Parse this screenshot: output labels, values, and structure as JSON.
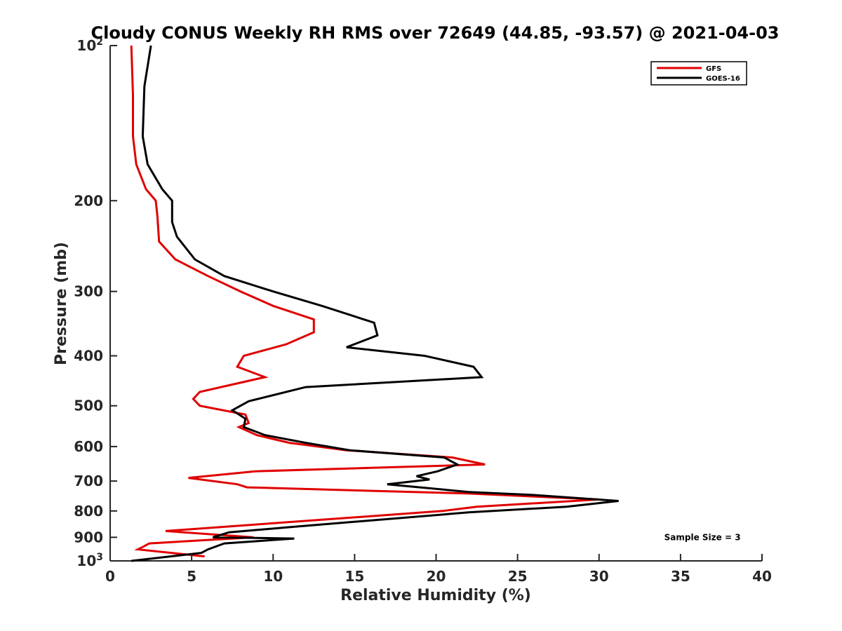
{
  "chart_data": {
    "type": "line",
    "title": "Cloudy CONUS Weekly RH RMS over 72649 (44.85, -93.57) @ 2021-04-03",
    "xlabel": "Relative Humidity (%)",
    "ylabel": "Pressure (mb)",
    "xlim": [
      0,
      40
    ],
    "ylim": [
      100,
      1000
    ],
    "y_scale": "log",
    "y_reversed": true,
    "grid": false,
    "legend_position": "top-right",
    "x_ticks": [
      "0",
      "5",
      "10",
      "15",
      "20",
      "25",
      "30",
      "35",
      "40"
    ],
    "y_ticks": [
      {
        "value": 100,
        "base": "10",
        "exp": "2"
      },
      {
        "value": 200,
        "label": "200"
      },
      {
        "value": 300,
        "label": "300"
      },
      {
        "value": 400,
        "label": "400"
      },
      {
        "value": 500,
        "label": "500"
      },
      {
        "value": 600,
        "label": "600"
      },
      {
        "value": 700,
        "label": "700"
      },
      {
        "value": 800,
        "label": "800"
      },
      {
        "value": 900,
        "label": "900"
      },
      {
        "value": 1000,
        "base": "10",
        "exp": "3"
      }
    ],
    "series": [
      {
        "name": "GFS",
        "color": "#e00000",
        "points": [
          [
            1.3,
            100
          ],
          [
            1.4,
            125
          ],
          [
            1.4,
            150
          ],
          [
            1.6,
            170
          ],
          [
            2.2,
            190
          ],
          [
            2.8,
            200
          ],
          [
            2.9,
            215
          ],
          [
            3.0,
            240
          ],
          [
            4.0,
            260
          ],
          [
            6.0,
            280
          ],
          [
            8.0,
            300
          ],
          [
            10.0,
            320
          ],
          [
            12.5,
            340
          ],
          [
            12.5,
            360
          ],
          [
            10.8,
            380
          ],
          [
            8.2,
            400
          ],
          [
            7.8,
            420
          ],
          [
            9.5,
            440
          ],
          [
            5.5,
            470
          ],
          [
            5.1,
            485
          ],
          [
            5.5,
            500
          ],
          [
            8.3,
            520
          ],
          [
            8.5,
            540
          ],
          [
            7.9,
            550
          ],
          [
            9.0,
            570
          ],
          [
            11.0,
            590
          ],
          [
            14.5,
            610
          ],
          [
            21.0,
            630
          ],
          [
            23.0,
            650
          ],
          [
            8.9,
            670
          ],
          [
            4.8,
            690
          ],
          [
            7.8,
            710
          ],
          [
            8.4,
            720
          ],
          [
            22.0,
            740
          ],
          [
            30.0,
            760
          ],
          [
            22.5,
            785
          ],
          [
            20.4,
            800
          ],
          [
            3.4,
            875
          ],
          [
            8.8,
            900
          ],
          [
            2.4,
            925
          ],
          [
            2.0,
            940
          ],
          [
            1.7,
            950
          ],
          [
            5.8,
            980
          ]
        ]
      },
      {
        "name": "GOES-16",
        "color": "#000000",
        "points": [
          [
            2.5,
            100
          ],
          [
            2.1,
            120
          ],
          [
            2.0,
            150
          ],
          [
            2.3,
            170
          ],
          [
            3.2,
            190
          ],
          [
            3.8,
            200
          ],
          [
            3.8,
            220
          ],
          [
            4.1,
            235
          ],
          [
            5.2,
            260
          ],
          [
            7.0,
            280
          ],
          [
            10.0,
            300
          ],
          [
            13.0,
            320
          ],
          [
            16.2,
            345
          ],
          [
            16.4,
            365
          ],
          [
            14.5,
            385
          ],
          [
            19.3,
            400
          ],
          [
            22.3,
            420
          ],
          [
            22.8,
            440
          ],
          [
            12.0,
            460
          ],
          [
            8.5,
            490
          ],
          [
            7.5,
            510
          ],
          [
            8.3,
            530
          ],
          [
            8.2,
            550
          ],
          [
            9.5,
            570
          ],
          [
            12.0,
            590
          ],
          [
            14.7,
            610
          ],
          [
            20.5,
            630
          ],
          [
            21.3,
            650
          ],
          [
            20.1,
            670
          ],
          [
            18.8,
            685
          ],
          [
            19.6,
            695
          ],
          [
            17.0,
            710
          ],
          [
            22.0,
            735
          ],
          [
            26.0,
            745
          ],
          [
            31.2,
            765
          ],
          [
            28.0,
            785
          ],
          [
            22.0,
            805
          ],
          [
            11.0,
            860
          ],
          [
            7.3,
            880
          ],
          [
            6.3,
            900
          ],
          [
            11.3,
            905
          ],
          [
            7.0,
            925
          ],
          [
            6.0,
            950
          ],
          [
            5.6,
            965
          ],
          [
            1.3,
            1000
          ]
        ]
      }
    ],
    "annotations": [
      {
        "text": "Sample Size = 3",
        "x": 34,
        "y": 900
      }
    ]
  }
}
